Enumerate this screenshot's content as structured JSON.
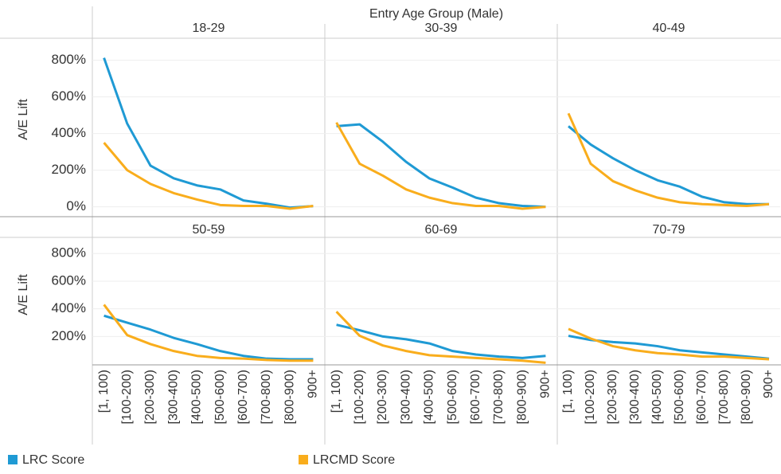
{
  "header": "Entry Age Group (Male)",
  "y_label": "A/E Lift",
  "chart_data": [
    {
      "type": "line",
      "title": "18-29",
      "categories": [
        "[1, 100)",
        "[100-200)",
        "[200-300)",
        "[300-400)",
        "[400-500)",
        "[500-600)",
        "[600-700)",
        "[700-800)",
        "[800-900)",
        "900+"
      ],
      "series": [
        {
          "name": "LRC Score",
          "color": "#1f9ad4",
          "values": [
            813,
            454,
            225,
            156,
            117,
            95,
            35,
            17,
            -4,
            4
          ]
        },
        {
          "name": "LRCMD Score",
          "color": "#f9ad1c",
          "values": [
            350,
            200,
            125,
            75,
            40,
            10,
            5,
            5,
            -10,
            5
          ]
        }
      ],
      "ylim": [
        -45,
        920
      ],
      "yticks": [
        {
          "value": 0,
          "label": "0%"
        },
        {
          "value": 200,
          "label": "200%"
        },
        {
          "value": 400,
          "label": "400%"
        },
        {
          "value": 600,
          "label": "600%"
        },
        {
          "value": 800,
          "label": "800%"
        }
      ],
      "grid": true
    },
    {
      "type": "line",
      "title": "30-39",
      "categories": [
        "[1, 100)",
        "[100-200)",
        "[200-300)",
        "[300-400)",
        "[400-500)",
        "[500-600)",
        "[600-700)",
        "[700-800)",
        "[800-900)",
        "900+"
      ],
      "series": [
        {
          "name": "LRC Score",
          "color": "#1f9ad4",
          "values": [
            440,
            450,
            355,
            245,
            155,
            105,
            50,
            20,
            5,
            0
          ]
        },
        {
          "name": "LRCMD Score",
          "color": "#f9ad1c",
          "values": [
            460,
            235,
            170,
            95,
            50,
            20,
            5,
            5,
            -10,
            0
          ]
        }
      ],
      "ylim": [
        -45,
        920
      ],
      "yticks": [
        {
          "value": 0,
          "label": "0%"
        },
        {
          "value": 200,
          "label": "200%"
        },
        {
          "value": 400,
          "label": "400%"
        },
        {
          "value": 600,
          "label": "600%"
        },
        {
          "value": 800,
          "label": "800%"
        }
      ],
      "grid": true
    },
    {
      "type": "line",
      "title": "40-49",
      "categories": [
        "[1, 100)",
        "[100-200)",
        "[200-300)",
        "[300-400)",
        "[400-500)",
        "[500-600)",
        "[600-700)",
        "[700-800)",
        "[800-900)",
        "900+"
      ],
      "series": [
        {
          "name": "LRC Score",
          "color": "#1f9ad4",
          "values": [
            440,
            340,
            265,
            200,
            145,
            110,
            55,
            25,
            15,
            15
          ]
        },
        {
          "name": "LRCMD Score",
          "color": "#f9ad1c",
          "values": [
            510,
            235,
            140,
            90,
            50,
            25,
            15,
            10,
            5,
            15
          ]
        }
      ],
      "ylim": [
        -45,
        920
      ],
      "yticks": [
        {
          "value": 0,
          "label": "0%"
        },
        {
          "value": 200,
          "label": "200%"
        },
        {
          "value": 400,
          "label": "400%"
        },
        {
          "value": 600,
          "label": "600%"
        },
        {
          "value": 800,
          "label": "800%"
        }
      ],
      "grid": true
    },
    {
      "type": "line",
      "title": "50-59",
      "categories": [
        "[1, 100)",
        "[100-200)",
        "[200-300)",
        "[300-400)",
        "[400-500)",
        "[500-600)",
        "[600-700)",
        "[700-800)",
        "[800-900)",
        "900+"
      ],
      "series": [
        {
          "name": "LRC Score",
          "color": "#1f9ad4",
          "values": [
            350,
            300,
            250,
            190,
            145,
            95,
            60,
            40,
            35,
            35
          ]
        },
        {
          "name": "LRCMD Score",
          "color": "#f9ad1c",
          "values": [
            430,
            210,
            145,
            95,
            60,
            45,
            40,
            30,
            25,
            25
          ]
        }
      ],
      "ylim": [
        -5,
        905
      ],
      "yticks": [
        {
          "value": 200,
          "label": "200%"
        },
        {
          "value": 400,
          "label": "400%"
        },
        {
          "value": 600,
          "label": "600%"
        },
        {
          "value": 800,
          "label": "800%"
        }
      ],
      "grid": true
    },
    {
      "type": "line",
      "title": "60-69",
      "categories": [
        "[1, 100)",
        "[100-200)",
        "[200-300)",
        "[300-400)",
        "[400-500)",
        "[500-600)",
        "[600-700)",
        "[700-800)",
        "[800-900)",
        "900+"
      ],
      "series": [
        {
          "name": "LRC Score",
          "color": "#1f9ad4",
          "values": [
            285,
            245,
            200,
            180,
            150,
            95,
            70,
            55,
            45,
            60
          ]
        },
        {
          "name": "LRCMD Score",
          "color": "#f9ad1c",
          "values": [
            380,
            205,
            135,
            95,
            65,
            55,
            45,
            35,
            25,
            10
          ]
        }
      ],
      "ylim": [
        -5,
        905
      ],
      "yticks": [
        {
          "value": 200,
          "label": "200%"
        },
        {
          "value": 400,
          "label": "400%"
        },
        {
          "value": 600,
          "label": "600%"
        },
        {
          "value": 800,
          "label": "800%"
        }
      ],
      "grid": true
    },
    {
      "type": "line",
      "title": "70-79",
      "categories": [
        "[1, 100)",
        "[100-200)",
        "[200-300)",
        "[300-400)",
        "[400-500)",
        "[500-600)",
        "[600-700)",
        "[700-800)",
        "[800-900)",
        "900+"
      ],
      "series": [
        {
          "name": "LRC Score",
          "color": "#1f9ad4",
          "values": [
            205,
            175,
            160,
            150,
            130,
            100,
            85,
            70,
            55,
            40
          ]
        },
        {
          "name": "LRCMD Score",
          "color": "#f9ad1c",
          "values": [
            255,
            185,
            130,
            100,
            80,
            70,
            55,
            55,
            45,
            35
          ]
        }
      ],
      "ylim": [
        -5,
        905
      ],
      "yticks": [
        {
          "value": 200,
          "label": "200%"
        },
        {
          "value": 400,
          "label": "400%"
        },
        {
          "value": 600,
          "label": "600%"
        },
        {
          "value": 800,
          "label": "800%"
        }
      ],
      "grid": true
    }
  ]
}
